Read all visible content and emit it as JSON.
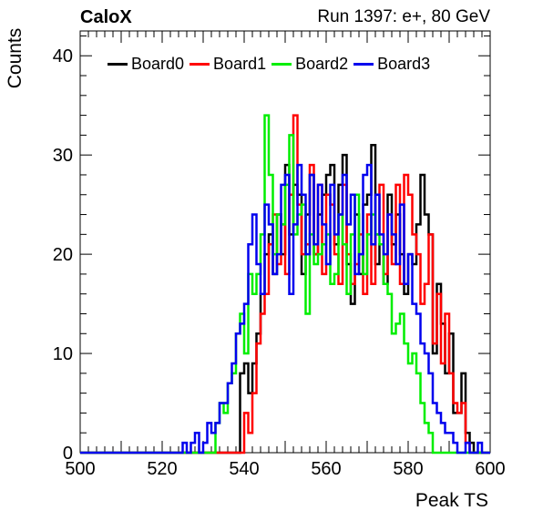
{
  "header": {
    "experiment": "CaloX",
    "run_info": "Run 1397: e+, 80 GeV"
  },
  "chart_data": {
    "type": "histogram-step",
    "xlabel": "Peak TS",
    "ylabel": "Counts",
    "xlim": [
      500,
      600
    ],
    "ylim": [
      0,
      42.5
    ],
    "x_ticks": [
      500,
      520,
      540,
      560,
      580,
      600
    ],
    "y_ticks": [
      0,
      10,
      20,
      30,
      40
    ],
    "grid": false,
    "legend_position": "top",
    "bins": [
      525,
      526,
      527,
      528,
      529,
      530,
      531,
      532,
      533,
      534,
      535,
      536,
      537,
      538,
      539,
      540,
      541,
      542,
      543,
      544,
      545,
      546,
      547,
      548,
      549,
      550,
      551,
      552,
      553,
      554,
      555,
      556,
      557,
      558,
      559,
      560,
      561,
      562,
      563,
      564,
      565,
      566,
      567,
      568,
      569,
      570,
      571,
      572,
      573,
      574,
      575,
      576,
      577,
      578,
      579,
      580,
      581,
      582,
      583,
      584,
      585,
      586,
      587,
      588,
      589,
      590,
      591,
      592,
      593,
      594,
      595,
      596,
      597,
      598,
      599
    ],
    "series": [
      {
        "name": "Board0",
        "color": "#000000",
        "values": [
          0,
          0,
          0,
          0,
          0,
          0,
          0,
          0,
          0,
          0,
          0,
          0,
          0,
          0,
          8,
          9,
          6,
          9,
          12,
          16,
          20,
          22,
          18,
          24,
          20,
          29,
          22,
          27,
          26,
          18,
          24,
          28,
          20,
          24,
          26,
          28,
          29,
          21,
          27,
          30,
          19,
          15,
          24,
          18,
          25,
          26,
          31,
          19,
          21,
          17,
          26,
          21,
          24,
          20,
          16,
          20,
          19,
          23,
          28,
          24,
          22,
          10,
          17,
          13,
          8,
          12,
          4,
          4,
          8,
          2,
          1,
          0,
          0,
          0,
          0
        ]
      },
      {
        "name": "Board1",
        "color": "#ff0000",
        "values": [
          0,
          0,
          0,
          0,
          0,
          0,
          0,
          0,
          0,
          0,
          0,
          0,
          0,
          0,
          0,
          4,
          2,
          6,
          11,
          14,
          16,
          21,
          24,
          19,
          23,
          18,
          26,
          34,
          25,
          20,
          21,
          29,
          20,
          27,
          18,
          26,
          25,
          20,
          17,
          27,
          20,
          17,
          19,
          22,
          16,
          24,
          17,
          22,
          27,
          18,
          24,
          19,
          27,
          17,
          28,
          26,
          22,
          20,
          15,
          17,
          22,
          11,
          16,
          9,
          14,
          8,
          5,
          4,
          5,
          1,
          0,
          0,
          0,
          0,
          0
        ]
      },
      {
        "name": "Board2",
        "color": "#00ee00",
        "values": [
          0,
          0,
          0,
          0,
          0,
          0,
          0,
          0,
          3,
          5,
          4,
          7,
          8,
          12,
          14,
          10,
          18,
          16,
          18,
          22,
          34,
          28,
          20,
          24,
          23,
          27,
          32,
          22,
          24,
          25,
          14,
          22,
          19,
          20,
          21,
          22,
          17,
          18,
          24,
          21,
          16,
          22,
          26,
          20,
          18,
          22,
          24,
          22,
          21,
          17,
          16,
          12,
          13,
          14,
          11,
          9,
          10,
          8,
          5,
          3,
          2,
          0,
          0,
          0,
          0,
          0,
          0,
          0,
          0,
          0,
          0,
          0,
          0,
          0,
          0
        ]
      },
      {
        "name": "Board3",
        "color": "#0000ee",
        "values": [
          1,
          0,
          1,
          2,
          0,
          1,
          3,
          2,
          3,
          5,
          5,
          7,
          9,
          12,
          13,
          15,
          21,
          24,
          19,
          16,
          25,
          23,
          18,
          20,
          27,
          28,
          16,
          23,
          29,
          26,
          20,
          28,
          21,
          27,
          23,
          19,
          27,
          22,
          24,
          28,
          23,
          26,
          18,
          20,
          28,
          29,
          21,
          26,
          22,
          20,
          24,
          22,
          19,
          25,
          17,
          20,
          15,
          14,
          11,
          10,
          8,
          5,
          4,
          3,
          2,
          2,
          1,
          0,
          0,
          1,
          0,
          0,
          1,
          0,
          0
        ]
      }
    ]
  }
}
